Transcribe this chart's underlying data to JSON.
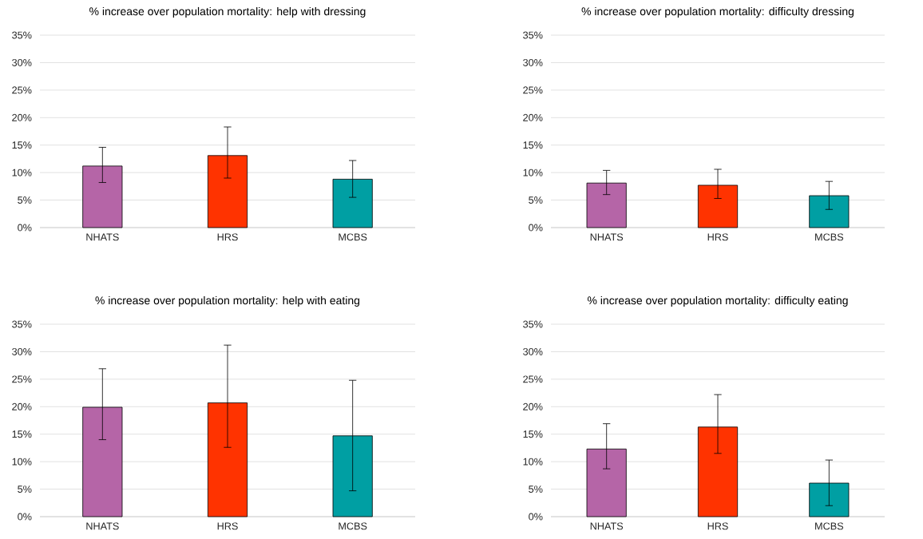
{
  "chart_data": [
    {
      "type": "bar",
      "title": "% increase over population mortality: help with dressing",
      "categories": [
        "NHATS",
        "HRS",
        "MCBS"
      ],
      "values": [
        11.2,
        13.1,
        8.8
      ],
      "colors": [
        "#b565a7",
        "#ff3300",
        "#009fa3"
      ],
      "errors": [
        [
          8.2,
          14.6
        ],
        [
          9.0,
          18.3
        ],
        [
          5.5,
          12.2
        ]
      ],
      "ylim": [
        0,
        35
      ],
      "yticks": [
        {
          "value": 0,
          "label": "0%"
        },
        {
          "value": 5,
          "label": "5%"
        },
        {
          "value": 10,
          "label": "10%"
        },
        {
          "value": 15,
          "label": "15%"
        },
        {
          "value": 20,
          "label": "20%"
        },
        {
          "value": 25,
          "label": "25%"
        },
        {
          "value": 30,
          "label": "30%"
        },
        {
          "value": 35,
          "label": "35%"
        }
      ],
      "grid": "y"
    },
    {
      "type": "bar",
      "title": "% increase over population mortality: difficulty dressing",
      "categories": [
        "NHATS",
        "HRS",
        "MCBS"
      ],
      "values": [
        8.1,
        7.7,
        5.8
      ],
      "colors": [
        "#b565a7",
        "#ff3300",
        "#009fa3"
      ],
      "errors": [
        [
          6.0,
          10.4
        ],
        [
          5.3,
          10.6
        ],
        [
          3.3,
          8.4
        ]
      ],
      "ylim": [
        0,
        35
      ],
      "yticks": [
        {
          "value": 0,
          "label": "0%"
        },
        {
          "value": 5,
          "label": "5%"
        },
        {
          "value": 10,
          "label": "10%"
        },
        {
          "value": 15,
          "label": "15%"
        },
        {
          "value": 20,
          "label": "20%"
        },
        {
          "value": 25,
          "label": "25%"
        },
        {
          "value": 30,
          "label": "30%"
        },
        {
          "value": 35,
          "label": "35%"
        }
      ],
      "grid": "y"
    },
    {
      "type": "bar",
      "title": "% increase over population mortality: help with eating",
      "categories": [
        "NHATS",
        "HRS",
        "MCBS"
      ],
      "values": [
        19.9,
        20.7,
        14.7
      ],
      "colors": [
        "#b565a7",
        "#ff3300",
        "#009fa3"
      ],
      "errors": [
        [
          14.0,
          26.9
        ],
        [
          12.6,
          31.2
        ],
        [
          4.7,
          24.8
        ]
      ],
      "ylim": [
        0,
        35
      ],
      "yticks": [
        {
          "value": 0,
          "label": "0%"
        },
        {
          "value": 5,
          "label": "5%"
        },
        {
          "value": 10,
          "label": "10%"
        },
        {
          "value": 15,
          "label": "15%"
        },
        {
          "value": 20,
          "label": "20%"
        },
        {
          "value": 25,
          "label": "25%"
        },
        {
          "value": 30,
          "label": "30%"
        },
        {
          "value": 35,
          "label": "35%"
        }
      ],
      "grid": "y"
    },
    {
      "type": "bar",
      "title": "% increase over population mortality: difficulty eating",
      "categories": [
        "NHATS",
        "HRS",
        "MCBS"
      ],
      "values": [
        12.3,
        16.3,
        6.1
      ],
      "colors": [
        "#b565a7",
        "#ff3300",
        "#009fa3"
      ],
      "errors": [
        [
          8.7,
          16.9
        ],
        [
          11.5,
          22.2
        ],
        [
          2.0,
          10.3
        ]
      ],
      "ylim": [
        0,
        35
      ],
      "yticks": [
        {
          "value": 0,
          "label": "0%"
        },
        {
          "value": 5,
          "label": "5%"
        },
        {
          "value": 10,
          "label": "10%"
        },
        {
          "value": 15,
          "label": "15%"
        },
        {
          "value": 20,
          "label": "20%"
        },
        {
          "value": 25,
          "label": "25%"
        },
        {
          "value": 30,
          "label": "30%"
        },
        {
          "value": 35,
          "label": "35%"
        }
      ],
      "grid": "y"
    }
  ]
}
